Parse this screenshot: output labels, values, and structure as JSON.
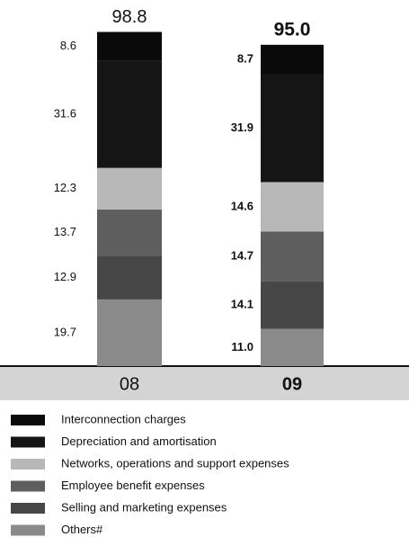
{
  "chart_data": {
    "type": "stacked_bar",
    "categories": [
      "08",
      "09"
    ],
    "totals": [
      98.8,
      95
    ],
    "total_labels": [
      "98.8",
      "95.0"
    ],
    "ylim": [
      0,
      100
    ],
    "series": [
      {
        "name": "Others#",
        "color": "#8a8a8a",
        "values": [
          19.7,
          11
        ],
        "value_labels": [
          "19.7",
          "11.0"
        ]
      },
      {
        "name": "Selling and marketing expenses",
        "color": "#474747",
        "values": [
          12.9,
          14.1
        ],
        "value_labels": [
          "12.9",
          "14.1"
        ]
      },
      {
        "name": "Employee benefit expenses",
        "color": "#5e5e5e",
        "values": [
          13.7,
          14.7
        ],
        "value_labels": [
          "13.7",
          "14.7"
        ]
      },
      {
        "name": "Networks, operations and support expenses",
        "color": "#b8b8b8",
        "values": [
          12.3,
          14.6
        ],
        "value_labels": [
          "12.3",
          "14.6"
        ]
      },
      {
        "name": "Depreciation and amortisation",
        "color": "#151515",
        "values": [
          31.6,
          31.9
        ],
        "value_labels": [
          "31.6",
          "31.9"
        ]
      },
      {
        "name": "Interconnection charges",
        "color": "#0a0a0a",
        "values": [
          8.6,
          8.7
        ],
        "value_labels": [
          "8.6",
          "8.7"
        ]
      }
    ]
  }
}
